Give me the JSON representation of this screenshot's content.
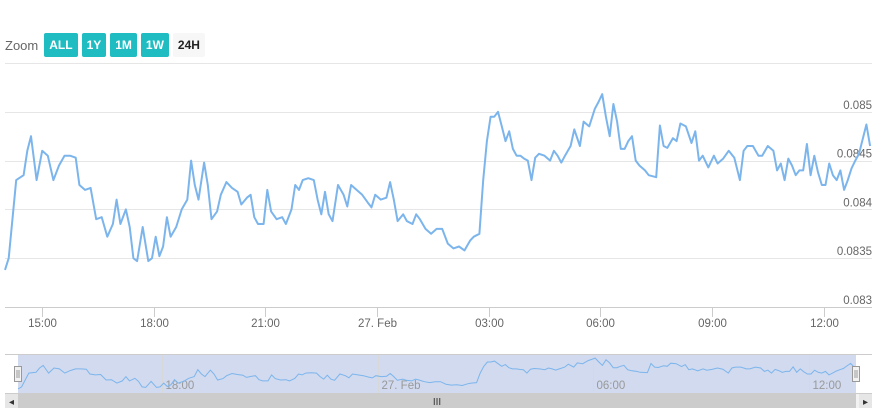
{
  "colors": {
    "line": "#7cb5ec",
    "button": "#1fbcc2",
    "navigator_mask": "#c9d3ec",
    "navigator_line": "#7cb5ec",
    "grid": "#e6e6e6",
    "scrollbar": "#e6e6e6"
  },
  "zoom": {
    "label": "Zoom",
    "buttons": [
      {
        "label": "ALL",
        "active": false
      },
      {
        "label": "1Y",
        "active": false
      },
      {
        "label": "1M",
        "active": false
      },
      {
        "label": "1W",
        "active": false
      },
      {
        "label": "24H",
        "active": true
      }
    ]
  },
  "chart_data": {
    "type": "line",
    "title": "",
    "xlabel": "",
    "ylabel": "",
    "x_range": [
      "26 Feb 14:00",
      "27 Feb 13:18"
    ],
    "ylim": [
      0.083,
      0.0855
    ],
    "y_ticks": [
      "0.0835",
      "0.084",
      "0.0845",
      "0.085",
      "0.083"
    ],
    "y_tick_values": [
      0.0835,
      0.084,
      0.0845,
      0.085,
      0.083
    ],
    "x_ticks": [
      "15:00",
      "18:00",
      "21:00",
      "27. Feb",
      "03:00",
      "06:00",
      "09:00",
      "12:00"
    ],
    "x_tick_hours": [
      15,
      18,
      21,
      24,
      27,
      30,
      33,
      36
    ],
    "grid": true,
    "legend": "none",
    "series": [
      {
        "values": [
          [
            14.0,
            0.08338
          ],
          [
            14.1,
            0.0835
          ],
          [
            14.3,
            0.0843
          ],
          [
            14.5,
            0.08435
          ],
          [
            14.6,
            0.0846
          ],
          [
            14.7,
            0.08475
          ],
          [
            14.85,
            0.0843
          ],
          [
            15.0,
            0.0846
          ],
          [
            15.15,
            0.08455
          ],
          [
            15.3,
            0.0843
          ],
          [
            15.45,
            0.08445
          ],
          [
            15.6,
            0.08455
          ],
          [
            15.75,
            0.08455
          ],
          [
            15.9,
            0.08453
          ],
          [
            16.0,
            0.08425
          ],
          [
            16.15,
            0.0842
          ],
          [
            16.3,
            0.08422
          ],
          [
            16.45,
            0.0839
          ],
          [
            16.6,
            0.08392
          ],
          [
            16.75,
            0.08372
          ],
          [
            16.9,
            0.08385
          ],
          [
            17.0,
            0.0841
          ],
          [
            17.1,
            0.08385
          ],
          [
            17.25,
            0.084
          ],
          [
            17.35,
            0.08382
          ],
          [
            17.45,
            0.0835
          ],
          [
            17.55,
            0.08347
          ],
          [
            17.7,
            0.08382
          ],
          [
            17.85,
            0.08347
          ],
          [
            17.95,
            0.0835
          ],
          [
            18.05,
            0.08372
          ],
          [
            18.15,
            0.08352
          ],
          [
            18.25,
            0.08362
          ],
          [
            18.35,
            0.08392
          ],
          [
            18.45,
            0.08372
          ],
          [
            18.6,
            0.08382
          ],
          [
            18.75,
            0.084
          ],
          [
            18.9,
            0.0841
          ],
          [
            19.0,
            0.0845
          ],
          [
            19.1,
            0.08425
          ],
          [
            19.2,
            0.0841
          ],
          [
            19.35,
            0.08448
          ],
          [
            19.45,
            0.08425
          ],
          [
            19.55,
            0.0839
          ],
          [
            19.7,
            0.08398
          ],
          [
            19.8,
            0.08415
          ],
          [
            19.95,
            0.08428
          ],
          [
            20.1,
            0.08422
          ],
          [
            20.25,
            0.08418
          ],
          [
            20.35,
            0.08405
          ],
          [
            20.5,
            0.08412
          ],
          [
            20.6,
            0.08415
          ],
          [
            20.7,
            0.08392
          ],
          [
            20.8,
            0.08385
          ],
          [
            20.95,
            0.08385
          ],
          [
            21.05,
            0.0842
          ],
          [
            21.15,
            0.08398
          ],
          [
            21.3,
            0.0839
          ],
          [
            21.45,
            0.08392
          ],
          [
            21.55,
            0.08385
          ],
          [
            21.7,
            0.084
          ],
          [
            21.8,
            0.08425
          ],
          [
            21.9,
            0.0842
          ],
          [
            22.0,
            0.0843
          ],
          [
            22.15,
            0.08432
          ],
          [
            22.3,
            0.0843
          ],
          [
            22.4,
            0.0841
          ],
          [
            22.5,
            0.08395
          ],
          [
            22.6,
            0.08418
          ],
          [
            22.7,
            0.08395
          ],
          [
            22.8,
            0.08388
          ],
          [
            22.95,
            0.08425
          ],
          [
            23.1,
            0.08415
          ],
          [
            23.2,
            0.08403
          ],
          [
            23.3,
            0.08425
          ],
          [
            23.45,
            0.0842
          ],
          [
            23.6,
            0.08415
          ],
          [
            23.75,
            0.08407
          ],
          [
            23.85,
            0.08402
          ],
          [
            23.95,
            0.08415
          ],
          [
            24.1,
            0.0841
          ],
          [
            24.25,
            0.08412
          ],
          [
            24.35,
            0.08428
          ],
          [
            24.45,
            0.0841
          ],
          [
            24.55,
            0.08388
          ],
          [
            24.7,
            0.08395
          ],
          [
            24.8,
            0.08388
          ],
          [
            24.95,
            0.08385
          ],
          [
            25.05,
            0.08395
          ],
          [
            25.15,
            0.0839
          ],
          [
            25.3,
            0.0838
          ],
          [
            25.45,
            0.08375
          ],
          [
            25.6,
            0.0838
          ],
          [
            25.75,
            0.0838
          ],
          [
            25.9,
            0.08365
          ],
          [
            26.05,
            0.0836
          ],
          [
            26.2,
            0.08362
          ],
          [
            26.35,
            0.08358
          ],
          [
            26.5,
            0.08368
          ],
          [
            26.6,
            0.08372
          ],
          [
            26.75,
            0.08375
          ],
          [
            26.85,
            0.0843
          ],
          [
            26.95,
            0.0847
          ],
          [
            27.05,
            0.08495
          ],
          [
            27.15,
            0.08495
          ],
          [
            27.25,
            0.085
          ],
          [
            27.35,
            0.08485
          ],
          [
            27.45,
            0.0847
          ],
          [
            27.55,
            0.0848
          ],
          [
            27.65,
            0.08462
          ],
          [
            27.75,
            0.08455
          ],
          [
            27.85,
            0.08455
          ],
          [
            27.95,
            0.08452
          ],
          [
            28.05,
            0.0845
          ],
          [
            28.15,
            0.0843
          ],
          [
            28.25,
            0.08453
          ],
          [
            28.35,
            0.08457
          ],
          [
            28.5,
            0.08455
          ],
          [
            28.65,
            0.0845
          ],
          [
            28.75,
            0.0846
          ],
          [
            28.85,
            0.08455
          ],
          [
            28.95,
            0.08448
          ],
          [
            29.05,
            0.08455
          ],
          [
            29.2,
            0.08465
          ],
          [
            29.3,
            0.08482
          ],
          [
            29.45,
            0.08465
          ],
          [
            29.55,
            0.0849
          ],
          [
            29.7,
            0.08485
          ],
          [
            29.85,
            0.08503
          ],
          [
            29.95,
            0.0851
          ],
          [
            30.05,
            0.08518
          ],
          [
            30.15,
            0.08495
          ],
          [
            30.25,
            0.08475
          ],
          [
            30.35,
            0.08508
          ],
          [
            30.45,
            0.0849
          ],
          [
            30.55,
            0.08462
          ],
          [
            30.65,
            0.08462
          ],
          [
            30.75,
            0.0847
          ],
          [
            30.85,
            0.08475
          ],
          [
            30.95,
            0.0845
          ],
          [
            31.05,
            0.08445
          ],
          [
            31.2,
            0.0844
          ],
          [
            31.3,
            0.08435
          ],
          [
            31.5,
            0.08433
          ],
          [
            31.6,
            0.08486
          ],
          [
            31.7,
            0.08465
          ],
          [
            31.8,
            0.08463
          ],
          [
            31.95,
            0.08473
          ],
          [
            32.05,
            0.0847
          ],
          [
            32.15,
            0.08488
          ],
          [
            32.3,
            0.08485
          ],
          [
            32.45,
            0.08468
          ],
          [
            32.55,
            0.0848
          ],
          [
            32.65,
            0.0845
          ],
          [
            32.75,
            0.08455
          ],
          [
            32.9,
            0.08443
          ],
          [
            33.05,
            0.08455
          ],
          [
            33.15,
            0.08447
          ],
          [
            33.3,
            0.08452
          ],
          [
            33.45,
            0.0846
          ],
          [
            33.6,
            0.08453
          ],
          [
            33.75,
            0.0843
          ],
          [
            33.85,
            0.0846
          ],
          [
            33.95,
            0.08465
          ],
          [
            34.1,
            0.08465
          ],
          [
            34.25,
            0.08455
          ],
          [
            34.35,
            0.08455
          ],
          [
            34.5,
            0.08465
          ],
          [
            34.65,
            0.0846
          ],
          [
            34.75,
            0.0844
          ],
          [
            34.85,
            0.08447
          ],
          [
            34.95,
            0.0843
          ],
          [
            35.05,
            0.08452
          ],
          [
            35.15,
            0.08445
          ],
          [
            35.25,
            0.08435
          ],
          [
            35.35,
            0.0844
          ],
          [
            35.45,
            0.0844
          ],
          [
            35.55,
            0.08467
          ],
          [
            35.65,
            0.08435
          ],
          [
            35.75,
            0.08455
          ],
          [
            35.85,
            0.08438
          ],
          [
            35.95,
            0.08425
          ],
          [
            36.05,
            0.08425
          ],
          [
            36.15,
            0.08447
          ],
          [
            36.25,
            0.08435
          ],
          [
            36.35,
            0.0843
          ],
          [
            36.45,
            0.0844
          ],
          [
            36.55,
            0.0842
          ],
          [
            36.65,
            0.0843
          ],
          [
            36.75,
            0.08442
          ],
          [
            36.85,
            0.0845
          ],
          [
            36.95,
            0.08457
          ],
          [
            37.05,
            0.08472
          ],
          [
            37.15,
            0.08487
          ],
          [
            37.25,
            0.08465
          ]
        ]
      }
    ]
  },
  "navigator": {
    "x_ticks": [
      "18:00",
      "27. Feb",
      "06:00",
      "12:00"
    ],
    "x_tick_hours": [
      18,
      24,
      30,
      36
    ]
  },
  "scrollbar": {
    "left_arrow": "◂",
    "right_arrow": "▸",
    "grip": "III"
  }
}
